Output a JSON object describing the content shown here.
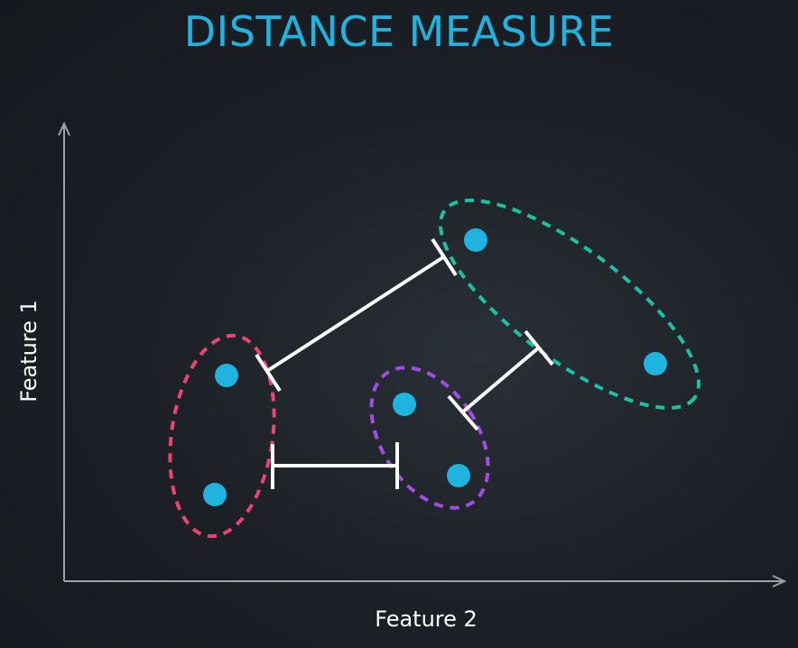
{
  "title": "DISTANCE MEASURE",
  "axes": {
    "x_label": "Feature 2",
    "y_label": "Feature 1"
  },
  "colors": {
    "title": "#1fb3e0",
    "point": "#1fb3e0",
    "axis": "#9aa3ad",
    "connector": "#ffffff",
    "cluster_red": "#e8456f",
    "cluster_purple": "#a04ee0",
    "cluster_teal": "#1ec0a4"
  },
  "clusters": [
    {
      "name": "red-cluster",
      "color_key": "cluster_red",
      "point_count": 2
    },
    {
      "name": "purple-cluster",
      "color_key": "cluster_purple",
      "point_count": 2
    },
    {
      "name": "teal-cluster",
      "color_key": "cluster_teal",
      "point_count": 2
    }
  ],
  "connectors": [
    {
      "from": "red-cluster",
      "to": "teal-cluster"
    },
    {
      "from": "purple-cluster",
      "to": "teal-cluster"
    },
    {
      "from": "red-cluster",
      "to": "purple-cluster"
    }
  ]
}
